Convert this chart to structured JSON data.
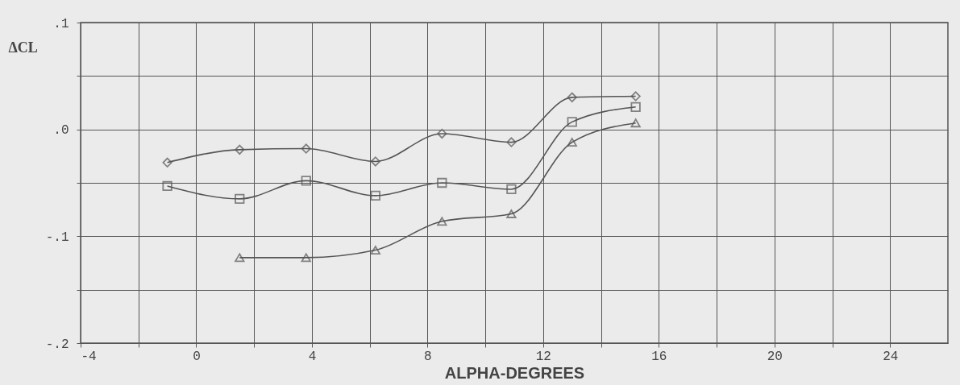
{
  "chart_data": {
    "type": "line",
    "xlabel": "ALPHA-DEGREES",
    "ylabel": "ΔCL",
    "x": [
      -1,
      1.5,
      3.8,
      6.2,
      8.5,
      10.9,
      13,
      15.2
    ],
    "series": [
      {
        "color": "#555555",
        "marker": "diamond",
        "values": [
          -0.031,
          -0.019,
          -0.018,
          -0.03,
          -0.004,
          -0.012,
          0.03,
          0.031
        ]
      },
      {
        "color": "#555555",
        "marker": "square",
        "values": [
          -0.053,
          -0.065,
          -0.048,
          -0.062,
          -0.05,
          -0.056,
          0.007,
          0.021
        ]
      },
      {
        "color": "#555555",
        "marker": "triangle",
        "x": [
          1.5,
          3.8,
          6.2,
          8.5,
          10.9,
          13,
          15.2
        ],
        "values": [
          -0.12,
          -0.12,
          -0.113,
          -0.086,
          -0.079,
          -0.012,
          0.006
        ]
      }
    ],
    "xlim": [
      -4,
      26
    ],
    "xticks": [
      -4,
      {
        "value": -2,
        "label": null
      },
      0,
      {
        "value": 2,
        "label": null
      },
      4,
      {
        "value": 6,
        "label": null
      },
      8,
      {
        "value": 10,
        "label": null
      },
      12,
      {
        "value": 14,
        "label": null
      },
      16,
      {
        "value": 18,
        "label": null
      },
      20,
      {
        "value": 22,
        "label": null
      },
      24
    ],
    "ylim": [
      -0.2,
      0.1
    ],
    "yticks": [
      {
        "value": -0.2,
        "label": "-.2"
      },
      {
        "value": -0.15,
        "label": null
      },
      {
        "value": -0.1,
        "label": "-.1"
      },
      {
        "value": -0.05,
        "label": null
      },
      {
        "value": 0,
        "label": ".0"
      },
      {
        "value": 0.05,
        "label": null
      },
      {
        "value": 0.1,
        "label": ".1"
      }
    ],
    "grid": true
  }
}
